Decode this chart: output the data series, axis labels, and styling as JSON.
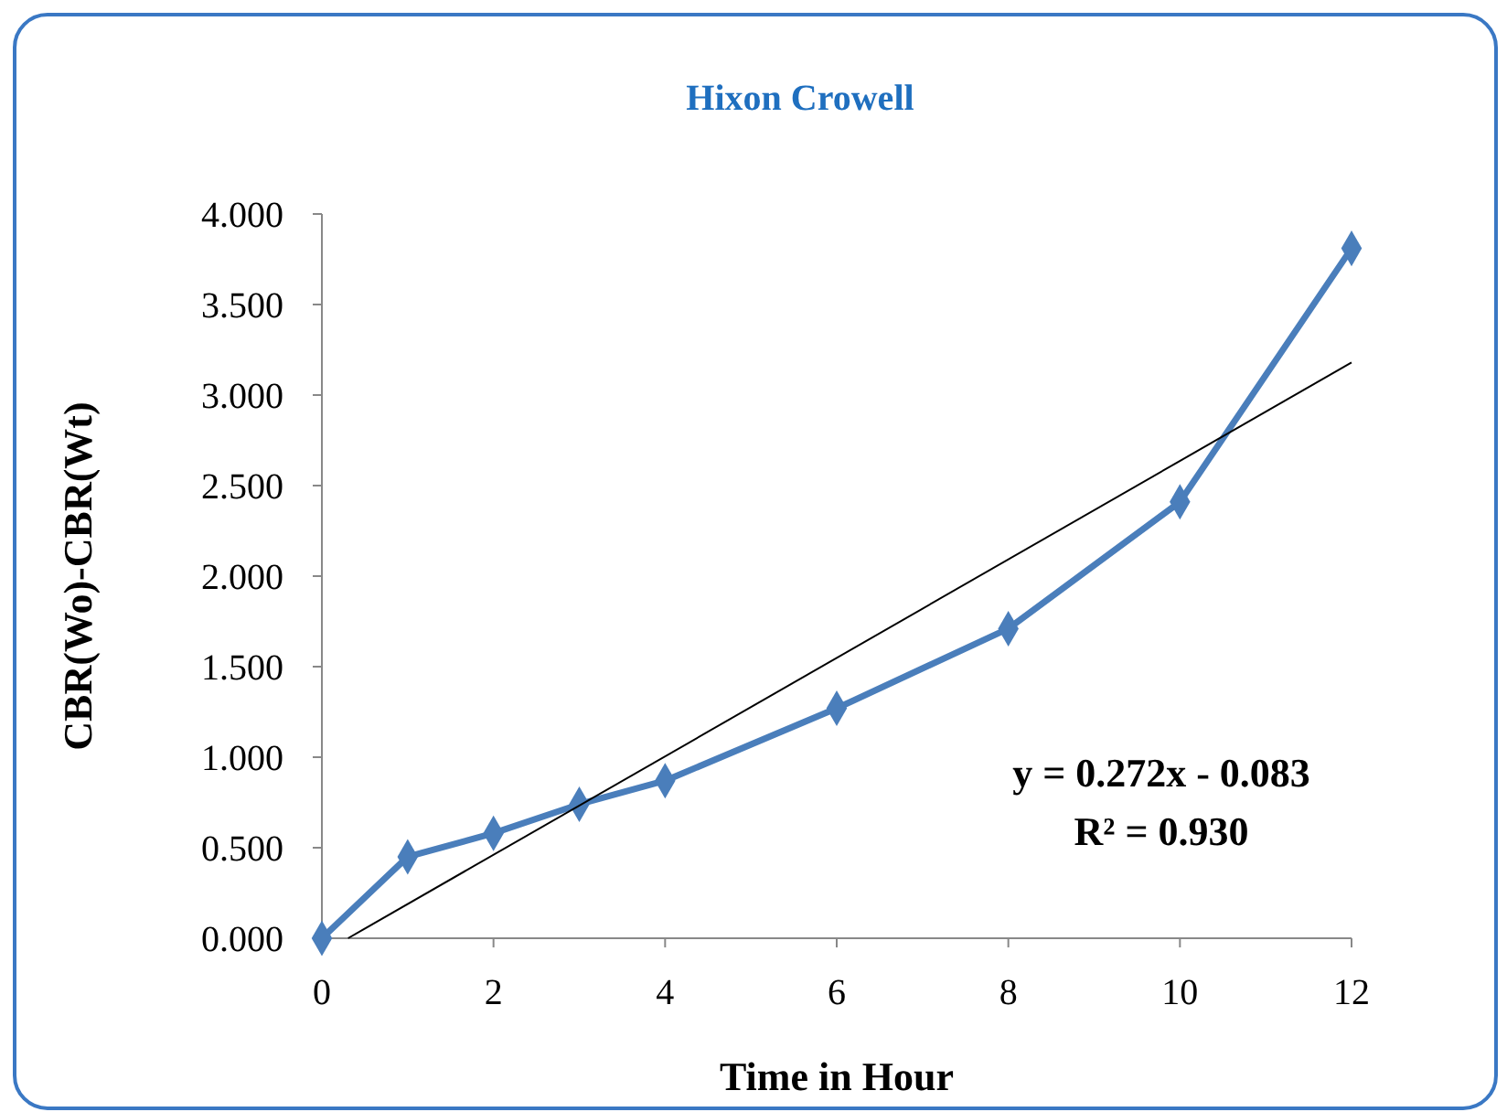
{
  "chart_data": {
    "type": "line",
    "title": "Hixon Crowell",
    "xlabel": "Time in Hour",
    "ylabel": "CBR(Wo)-CBR(Wt)",
    "x": [
      0,
      1,
      2,
      3,
      4,
      6,
      8,
      10,
      12
    ],
    "series": [
      {
        "color": "#4a7ebb",
        "marker": "diamond",
        "values": [
          0,
          0.45,
          0.58,
          0.74,
          0.87,
          1.27,
          1.71,
          2.41,
          3.81
        ]
      },
      {
        "color": "#000000",
        "marker": "none",
        "x": [
          0.305,
          12
        ],
        "values": [
          0,
          3.18
        ]
      }
    ],
    "xlim": [
      0,
      12
    ],
    "xticks": [
      0,
      2,
      4,
      6,
      8,
      10,
      12
    ],
    "ylim": [
      0,
      4
    ],
    "yticks": [
      {
        "value": 0,
        "label": "0.000"
      },
      {
        "value": 0.5,
        "label": "0.500"
      },
      {
        "value": 1,
        "label": "1.000"
      },
      {
        "value": 1.5,
        "label": "1.500"
      },
      {
        "value": 2,
        "label": "2.000"
      },
      {
        "value": 2.5,
        "label": "2.500"
      },
      {
        "value": 3,
        "label": "3.000"
      },
      {
        "value": 3.5,
        "label": "3.500"
      },
      {
        "value": 4,
        "label": "4.000"
      }
    ],
    "annotations": [
      "y = 0.272x - 0.083",
      "R² = 0.930"
    ],
    "grid": false
  }
}
